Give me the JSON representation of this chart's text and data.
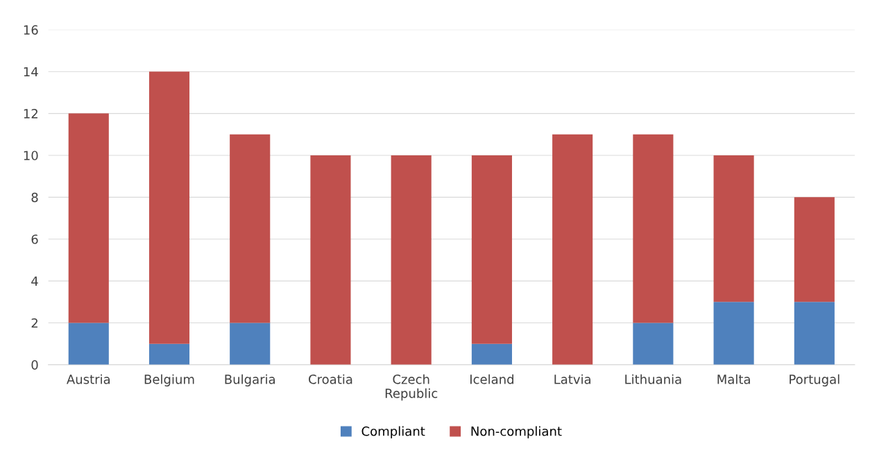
{
  "chart_data": {
    "type": "bar",
    "stacked": true,
    "categories": [
      "Austria",
      "Belgium",
      "Bulgaria",
      "Croatia",
      "Czech\nRepublic",
      "Iceland",
      "Latvia",
      "Lithuania",
      "Malta",
      "Portugal"
    ],
    "series": [
      {
        "name": "Compliant",
        "color": "#4f81bd",
        "values": [
          2,
          1,
          2,
          0,
          0,
          1,
          0,
          2,
          3,
          3
        ]
      },
      {
        "name": "Non-compliant",
        "color": "#c0504d",
        "values": [
          10,
          13,
          9,
          10,
          10,
          9,
          11,
          9,
          7,
          5
        ]
      }
    ],
    "ylim": [
      0,
      16
    ],
    "yticks": [
      0,
      2,
      4,
      6,
      8,
      10,
      12,
      14,
      16
    ],
    "grid": "y",
    "legend": "bottom"
  }
}
